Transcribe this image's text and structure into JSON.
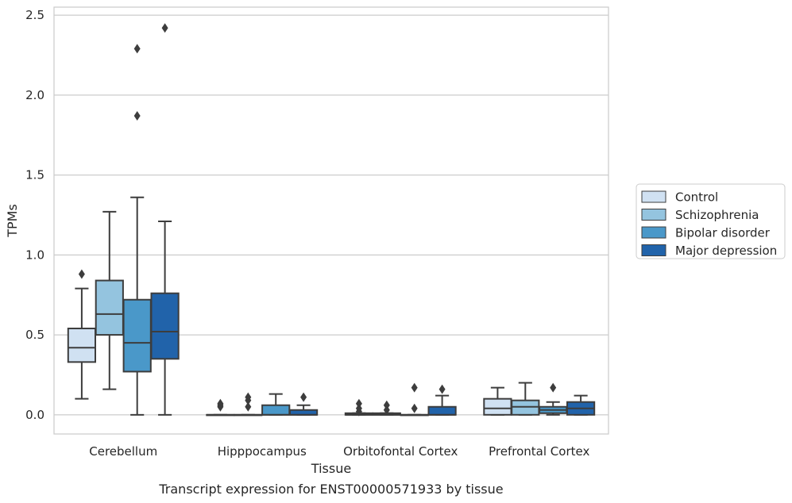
{
  "chart_data": {
    "type": "box",
    "caption": "Transcript expression for ENST00000571933 by tissue",
    "xlabel": "Tissue",
    "ylabel": "TPMs",
    "ylim": [
      -0.12,
      2.55
    ],
    "yticks": [
      0.0,
      0.5,
      1.0,
      1.5,
      2.0,
      2.5
    ],
    "ytick_labels": [
      "0.0",
      "0.5",
      "1.0",
      "1.5",
      "2.0",
      "2.5"
    ],
    "grid": "horizontal",
    "legend_position": "right",
    "categories": [
      "Cerebellum",
      "Hipppocampus",
      "Orbitofontal Cortex",
      "Prefrontal Cortex"
    ],
    "series": [
      {
        "name": "Control",
        "color": "#d0e1f2",
        "boxes": [
          {
            "whislo": 0.1,
            "q1": 0.33,
            "med": 0.42,
            "q3": 0.54,
            "whishi": 0.79,
            "fliers": [
              0.88
            ]
          },
          {
            "whislo": 0.0,
            "q1": 0.0,
            "med": 0.0,
            "q3": 0.0,
            "whishi": 0.0,
            "fliers": [
              0.05,
              0.06,
              0.07
            ]
          },
          {
            "whislo": 0.0,
            "q1": 0.0,
            "med": 0.0,
            "q3": 0.01,
            "whishi": 0.01,
            "fliers": [
              0.02,
              0.04,
              0.07
            ]
          },
          {
            "whislo": 0.0,
            "q1": 0.0,
            "med": 0.04,
            "q3": 0.1,
            "whishi": 0.17,
            "fliers": []
          }
        ]
      },
      {
        "name": "Schizophrenia",
        "color": "#94c4df",
        "boxes": [
          {
            "whislo": 0.16,
            "q1": 0.5,
            "med": 0.63,
            "q3": 0.84,
            "whishi": 1.27,
            "fliers": []
          },
          {
            "whislo": 0.0,
            "q1": 0.0,
            "med": 0.0,
            "q3": 0.0,
            "whishi": 0.0,
            "fliers": [
              0.05,
              0.09,
              0.11
            ]
          },
          {
            "whislo": 0.0,
            "q1": 0.0,
            "med": 0.0,
            "q3": 0.01,
            "whishi": 0.01,
            "fliers": [
              0.03,
              0.06
            ]
          },
          {
            "whislo": 0.0,
            "q1": 0.0,
            "med": 0.05,
            "q3": 0.09,
            "whishi": 0.2,
            "fliers": []
          }
        ]
      },
      {
        "name": "Bipolar disorder",
        "color": "#4a98c9",
        "boxes": [
          {
            "whislo": 0.0,
            "q1": 0.27,
            "med": 0.45,
            "q3": 0.72,
            "whishi": 1.36,
            "fliers": [
              1.87,
              2.29
            ]
          },
          {
            "whislo": 0.0,
            "q1": 0.0,
            "med": 0.0,
            "q3": 0.06,
            "whishi": 0.13,
            "fliers": []
          },
          {
            "whislo": 0.0,
            "q1": 0.0,
            "med": 0.0,
            "q3": 0.0,
            "whishi": 0.0,
            "fliers": [
              0.04,
              0.17
            ]
          },
          {
            "whislo": 0.0,
            "q1": 0.01,
            "med": 0.03,
            "q3": 0.05,
            "whishi": 0.08,
            "fliers": [
              0.17
            ]
          }
        ]
      },
      {
        "name": "Major depression",
        "color": "#2163aa",
        "boxes": [
          {
            "whislo": 0.0,
            "q1": 0.35,
            "med": 0.52,
            "q3": 0.76,
            "whishi": 1.21,
            "fliers": [
              2.42
            ]
          },
          {
            "whislo": 0.0,
            "q1": 0.0,
            "med": 0.0,
            "q3": 0.03,
            "whishi": 0.06,
            "fliers": [
              0.11
            ]
          },
          {
            "whislo": 0.0,
            "q1": 0.0,
            "med": 0.0,
            "q3": 0.05,
            "whishi": 0.12,
            "fliers": [
              0.16
            ]
          },
          {
            "whislo": 0.0,
            "q1": 0.0,
            "med": 0.04,
            "q3": 0.08,
            "whishi": 0.12,
            "fliers": []
          }
        ]
      }
    ]
  }
}
